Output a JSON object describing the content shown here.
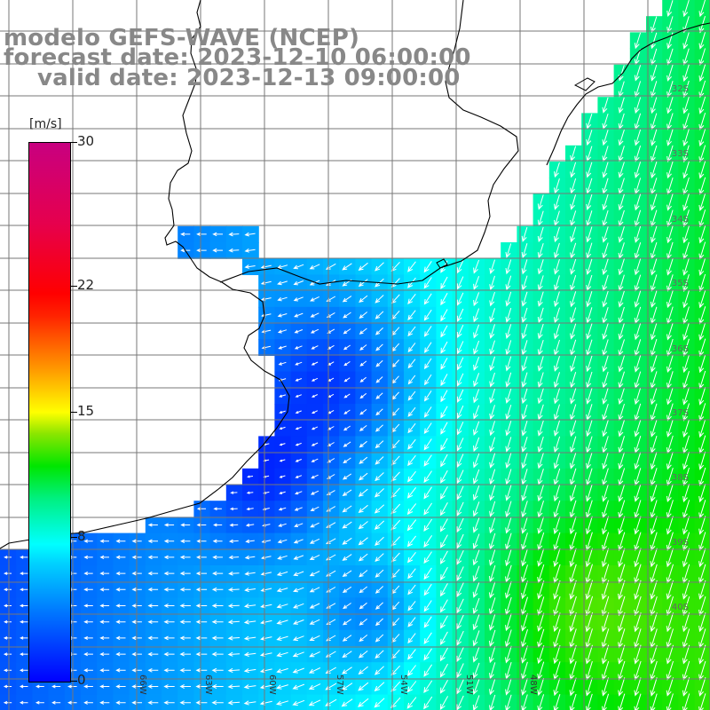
{
  "titles": {
    "model": "modelo GEFS-WAVE (NCEP)",
    "forecast": "forecast date: 2023-12-10 06:00:00",
    "valid": "valid date: 2023-12-13 09:00:00"
  },
  "colorbar": {
    "units": "[m/s]",
    "ticks": [
      {
        "value": 30,
        "label": "30"
      },
      {
        "value": 22,
        "label": "22"
      },
      {
        "value": 15,
        "label": "15"
      },
      {
        "value": 8,
        "label": "8"
      },
      {
        "value": 0,
        "label": "0"
      }
    ],
    "range": [
      0,
      30
    ]
  },
  "map": {
    "longitude_labels": [
      "66W",
      "63W",
      "60W",
      "57W",
      "54W",
      "51W",
      "48W"
    ],
    "latitude_labels": [
      "32S",
      "33S",
      "34S",
      "35S",
      "36S",
      "37S",
      "38S",
      "39S",
      "40S"
    ]
  },
  "colors": {
    "calm": "#0000ff",
    "moderate": "#00ffff",
    "strong": "#00e600",
    "gridline": "#777777",
    "coastline": "#000000",
    "title_text": "#888888"
  }
}
